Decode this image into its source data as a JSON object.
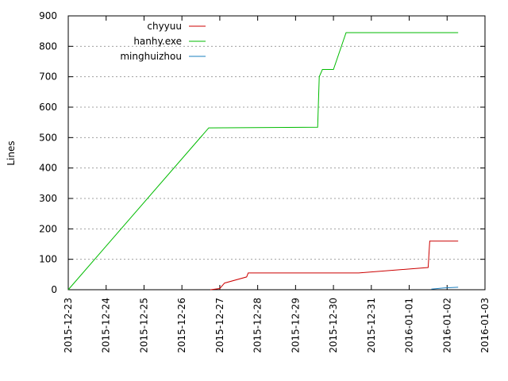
{
  "chart_data": {
    "type": "line",
    "ylabel": "Lines",
    "xlabel": "",
    "title": "",
    "ylim": [
      0,
      900
    ],
    "yticks": [
      0,
      100,
      200,
      300,
      400,
      500,
      600,
      700,
      800,
      900
    ],
    "xlim": [
      "2015-12-23",
      "2016-01-03"
    ],
    "xticks": [
      "2015-12-23",
      "2015-12-24",
      "2015-12-25",
      "2015-12-26",
      "2015-12-27",
      "2015-12-28",
      "2015-12-29",
      "2015-12-30",
      "2015-12-31",
      "2016-01-01",
      "2016-01-02",
      "2016-01-03"
    ],
    "grid": "horizontal-dotted",
    "legend_position": "top-left",
    "series": [
      {
        "name": "chyyuu",
        "color": "#cc0000",
        "points": [
          [
            "2015-12-26 18:00",
            0
          ],
          [
            "2015-12-27 00:00",
            4
          ],
          [
            "2015-12-27 03:00",
            22
          ],
          [
            "2015-12-27 17:00",
            42
          ],
          [
            "2015-12-27 18:00",
            55
          ],
          [
            "2015-12-30 16:00",
            55
          ],
          [
            "2016-01-01 12:00",
            73
          ],
          [
            "2016-01-01 13:00",
            160
          ],
          [
            "2016-01-02 07:00",
            160
          ]
        ]
      },
      {
        "name": "hanhy.exe",
        "color": "#00bb00",
        "points": [
          [
            "2015-12-23 00:00",
            0
          ],
          [
            "2015-12-26 17:00",
            532
          ],
          [
            "2015-12-29 14:00",
            534
          ],
          [
            "2015-12-29 15:00",
            700
          ],
          [
            "2015-12-29 17:00",
            724
          ],
          [
            "2015-12-30 00:00",
            724
          ],
          [
            "2015-12-30 08:00",
            845
          ],
          [
            "2016-01-02 07:00",
            845
          ]
        ]
      },
      {
        "name": "minghuizhou",
        "color": "#1a7fbf",
        "points": [
          [
            "2016-01-01 14:00",
            2
          ],
          [
            "2016-01-01 22:00",
            6
          ],
          [
            "2016-01-02 07:00",
            8
          ]
        ]
      }
    ]
  }
}
